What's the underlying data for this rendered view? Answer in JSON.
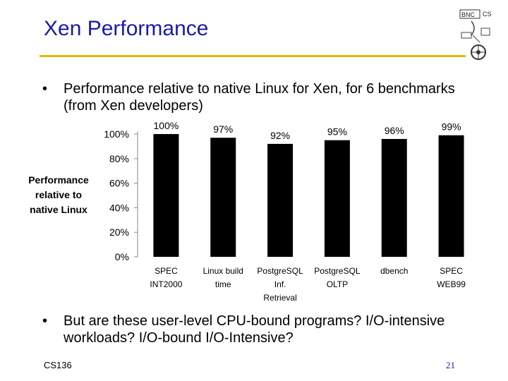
{
  "title": "Xen Performance",
  "bullets": [
    "Performance relative to native Linux for Xen, for 6 benchmarks (from Xen developers)",
    "But are these user-level CPU-bound programs? I/O-intensive workloads? I/O-bound I/O-Intensive?"
  ],
  "bullet_symbol": "•",
  "footer": {
    "course": "CS136",
    "page": "21"
  },
  "colors": {
    "title": "#1a1aa8",
    "rule": "#e6b800",
    "bars": "#000000"
  },
  "logo_text": "BNC CS",
  "chart_data": {
    "type": "bar",
    "categories": [
      [
        "SPEC",
        "INT2000"
      ],
      [
        "Linux build",
        "time"
      ],
      [
        "PostgreSQL",
        "Inf.",
        "Retrieval"
      ],
      [
        "PostgreSQL",
        "OLTP"
      ],
      [
        "dbench"
      ],
      [
        "SPEC",
        "WEB99"
      ]
    ],
    "values": [
      100,
      97,
      92,
      95,
      96,
      99
    ],
    "value_labels": [
      "100%",
      "97%",
      "92%",
      "95%",
      "96%",
      "99%"
    ],
    "ylabel": [
      "Performance",
      "relative to",
      "native Linux"
    ],
    "ylim": [
      0,
      100
    ],
    "yticks": [
      0,
      20,
      40,
      60,
      80,
      100
    ],
    "ytick_labels": [
      "0%",
      "20%",
      "40%",
      "60%",
      "80%",
      "100%"
    ]
  }
}
